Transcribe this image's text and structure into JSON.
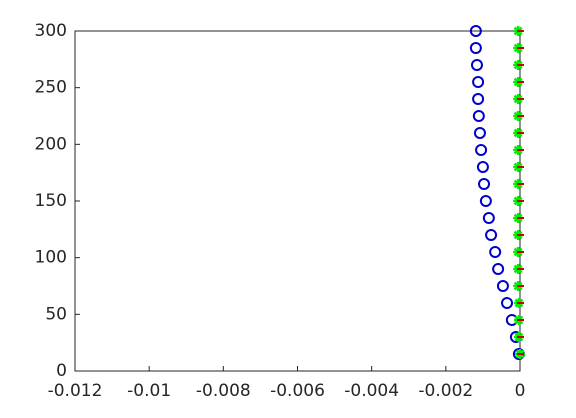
{
  "chart_data": {
    "type": "scatter",
    "y": [
      15,
      30,
      45,
      60,
      75,
      90,
      105,
      120,
      135,
      150,
      165,
      180,
      195,
      210,
      225,
      240,
      255,
      270,
      285,
      300
    ],
    "series": [
      {
        "color": "#0000cc",
        "marker": "circle",
        "x": [
          -3e-05,
          -0.00011,
          -0.00022,
          -0.00035,
          -0.00046,
          -0.00059,
          -0.00067,
          -0.00078,
          -0.00084,
          -0.00092,
          -0.00097,
          -0.001,
          -0.00105,
          -0.00108,
          -0.00111,
          -0.00113,
          -0.00113,
          -0.00116,
          -0.00119,
          -0.00119
        ]
      },
      {
        "color": "#00ee00",
        "marker": "asterisk",
        "x": [
          0,
          -3e-05,
          -3e-05,
          -3e-05,
          -5e-05,
          -5e-05,
          -5e-05,
          -5e-05,
          -5e-05,
          -5e-05,
          -5e-05,
          -5e-05,
          -5e-05,
          -5e-05,
          -5e-05,
          -5e-05,
          -5e-05,
          -5e-05,
          -5e-05,
          -5e-05
        ]
      },
      {
        "color": "#cc0000",
        "marker": "dash",
        "x": [
          0,
          0,
          0,
          0,
          0,
          0,
          0,
          0,
          0,
          0,
          0,
          0,
          0,
          0,
          0,
          0,
          0,
          0,
          0,
          0
        ]
      }
    ],
    "xlim": [
      -0.012,
      0
    ],
    "xticks": [
      -0.012,
      -0.01,
      -0.008,
      -0.006,
      -0.004,
      -0.002,
      0
    ],
    "ylim": [
      0,
      300
    ],
    "yticks": [
      0,
      50,
      100,
      150,
      200,
      250,
      300
    ],
    "box": true
  }
}
